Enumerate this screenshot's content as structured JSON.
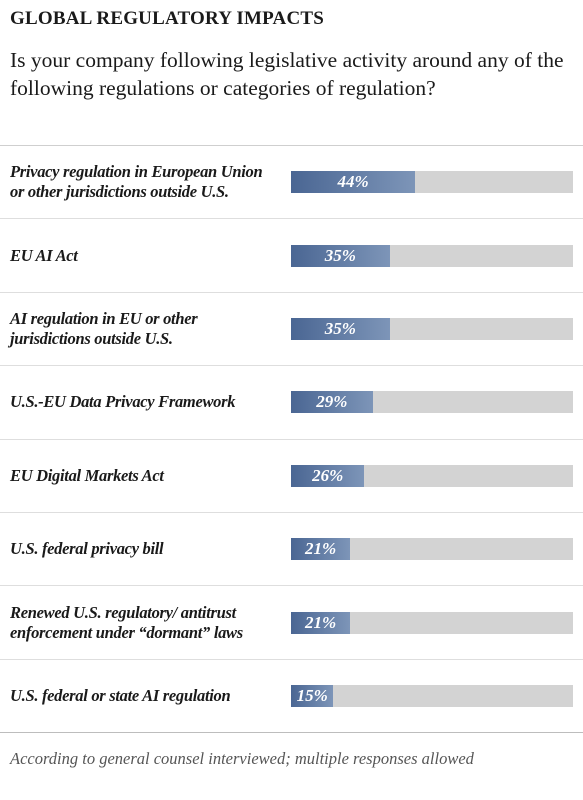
{
  "chart_data": {
    "type": "bar",
    "orientation": "horizontal",
    "title": "GLOBAL REGULATORY IMPACTS",
    "subtitle": "Is your company following legislative activity around any of the following regulations or categories of regulation?",
    "categories": [
      "Privacy regulation in European Union or other jurisdictions outside U.S.",
      "EU AI Act",
      "AI regulation in EU or other jurisdictions outside U.S.",
      "U.S.-EU Data Privacy Framework",
      "EU Digital Markets Act",
      "U.S. federal privacy bill",
      "Renewed U.S. regulatory/ antitrust enforcement under “dormant” laws",
      "U.S. federal or state AI regulation"
    ],
    "values": [
      44,
      35,
      35,
      29,
      26,
      21,
      21,
      15
    ],
    "value_labels": [
      "44%",
      "35%",
      "35%",
      "29%",
      "26%",
      "21%",
      "21%",
      "15%"
    ],
    "xlim": [
      0,
      100
    ],
    "color": "#4a6693",
    "footnote": "According to general counsel interviewed; multiple responses allowed"
  }
}
